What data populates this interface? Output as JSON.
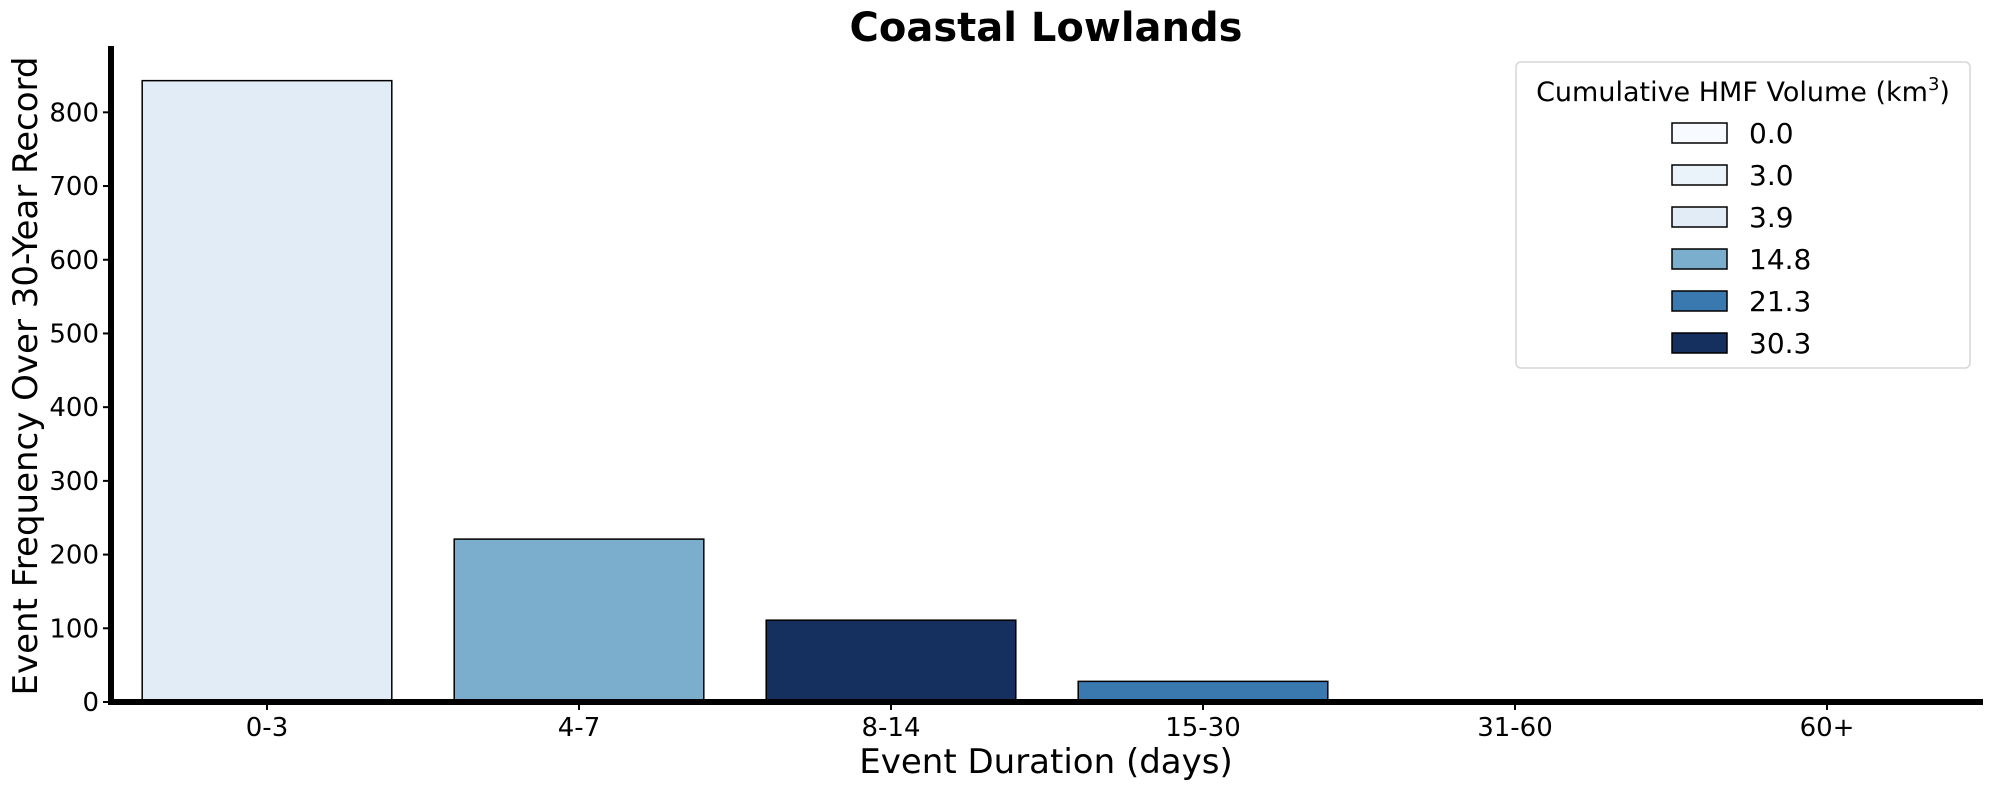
{
  "chart_data": {
    "type": "bar",
    "title": "Coastal Lowlands",
    "xlabel": "Event Duration (days)",
    "ylabel": "Event Frequency Over 30-Year Record",
    "categories": [
      "0-3",
      "4-7",
      "8-14",
      "15-30",
      "31-60",
      "60+"
    ],
    "values": [
      843,
      221,
      111,
      28,
      0,
      0
    ],
    "bar_volumes": [
      3.9,
      14.8,
      30.3,
      21.3,
      0.0,
      3.0
    ],
    "ylim": [
      0,
      890
    ],
    "yticks": [
      0,
      100,
      200,
      300,
      400,
      500,
      600,
      700,
      800
    ],
    "grid": false,
    "legend": {
      "title_prefix": "Cumulative HMF Volume (km",
      "title_superscript": "3",
      "title_suffix": ")",
      "placement": "top-right",
      "entries": [
        {
          "label": "0.0",
          "color": "#f7fbff"
        },
        {
          "label": "3.0",
          "color": "#eaf2fa"
        },
        {
          "label": "3.9",
          "color": "#e2ecf6"
        },
        {
          "label": "14.8",
          "color": "#7badcc"
        },
        {
          "label": "21.3",
          "color": "#3a78b0"
        },
        {
          "label": "30.3",
          "color": "#15305e"
        }
      ]
    },
    "bar_colors": [
      "#e2ecf6",
      "#7badcc",
      "#15305e",
      "#3a78b0",
      "#f7fbff",
      "#eaf2fa"
    ]
  }
}
